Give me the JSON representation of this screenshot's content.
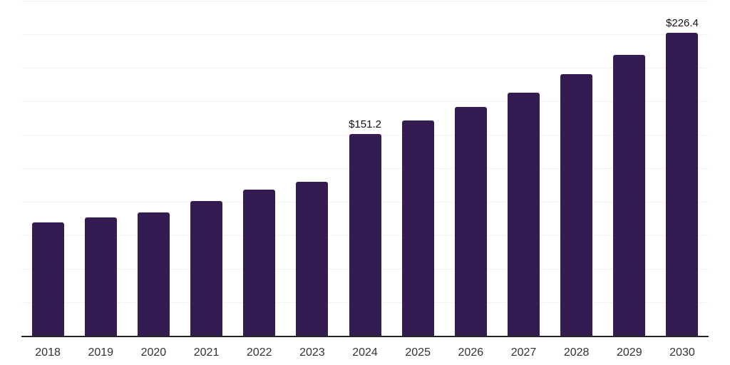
{
  "chart_data": {
    "type": "bar",
    "title": "",
    "xlabel": "",
    "ylabel": "",
    "categories": [
      "2018",
      "2019",
      "2020",
      "2021",
      "2022",
      "2023",
      "2024",
      "2025",
      "2026",
      "2027",
      "2028",
      "2029",
      "2030"
    ],
    "values": [
      85.3,
      88.6,
      92.8,
      101.2,
      109.8,
      115.6,
      151.2,
      161.0,
      171.5,
      181.9,
      196.0,
      210.0,
      226.4
    ],
    "data_labels": [
      "",
      "",
      "",
      "",
      "",
      "",
      "$151.2",
      "",
      "",
      "",
      "",
      "",
      "$226.4"
    ],
    "ylim": [
      0,
      250
    ],
    "gridline_interval": 25,
    "grid": true,
    "legend": "none",
    "colors": {
      "bar": "#341b52",
      "gridline": "#f2f2f2",
      "axis_line": "#262626",
      "data_label_text": "#111111",
      "tick_label_text": "#333333",
      "background": "#ffffff"
    }
  }
}
